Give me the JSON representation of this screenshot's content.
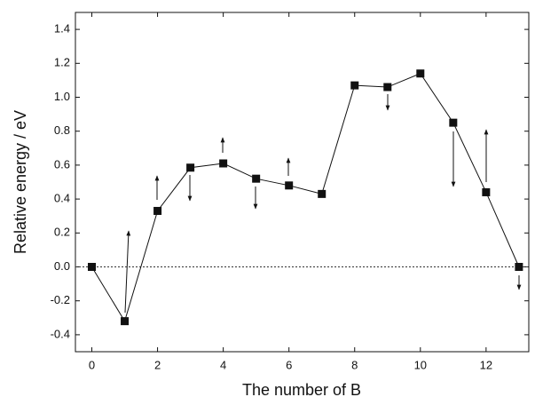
{
  "chart_data": {
    "type": "line",
    "x_label": "The number of B",
    "y_label": "Relative energy / eV",
    "x": [
      0,
      1,
      2,
      3,
      4,
      5,
      6,
      7,
      8,
      9,
      10,
      11,
      12,
      13
    ],
    "series": [
      {
        "color": "#111111",
        "values": [
          0.0,
          -0.32,
          0.33,
          0.585,
          0.61,
          0.52,
          0.48,
          0.43,
          1.07,
          1.06,
          1.14,
          0.85,
          0.44,
          0.0
        ]
      }
    ],
    "xlim": [
      -0.5,
      13.3
    ],
    "ylim": [
      -0.5,
      1.5
    ],
    "xticks": [
      0,
      2,
      4,
      6,
      8,
      10,
      12
    ],
    "yticks": [
      -0.4,
      -0.2,
      {
        "value": 0,
        "label": "0.0"
      },
      0.2,
      0.4,
      0.6,
      0.8,
      {
        "value": 1,
        "label": "1.0"
      },
      1.2,
      1.4
    ],
    "reference_line": 0
  }
}
